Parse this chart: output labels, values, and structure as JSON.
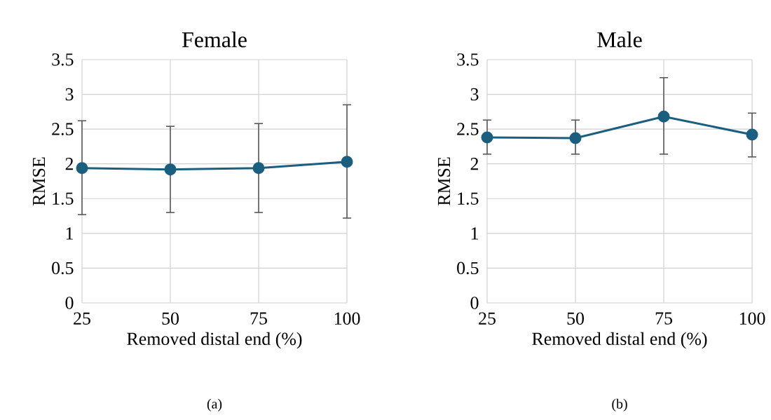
{
  "chart_data": [
    {
      "type": "line",
      "title": "Female",
      "xlabel": "Removed distal end (%)",
      "ylabel": "RMSE",
      "x": [
        25,
        50,
        75,
        100
      ],
      "values": [
        1.94,
        1.92,
        1.94,
        2.03
      ],
      "errors": [
        [
          1.27,
          2.62
        ],
        [
          1.3,
          2.54
        ],
        [
          1.3,
          2.58
        ],
        [
          1.22,
          2.85
        ]
      ],
      "color": "#1a5e80",
      "xlim": [
        25,
        100
      ],
      "xticks": [
        25,
        50,
        75,
        100
      ],
      "ylim": [
        0,
        3.5
      ],
      "yticks": [
        0,
        0.5,
        1,
        1.5,
        2,
        2.5,
        3,
        3.5
      ],
      "grid": true,
      "marker": "circle",
      "line_style": "solid",
      "annotations": [
        "(a)"
      ]
    },
    {
      "type": "line",
      "title": "Male",
      "xlabel": "Removed distal end (%)",
      "ylabel": "RMSE",
      "x": [
        25,
        50,
        75,
        100
      ],
      "values": [
        2.38,
        2.37,
        2.68,
        2.42
      ],
      "errors": [
        [
          2.14,
          2.63
        ],
        [
          2.14,
          2.63
        ],
        [
          2.14,
          3.24
        ],
        [
          2.1,
          2.73
        ]
      ],
      "color": "#1a5e80",
      "xlim": [
        25,
        100
      ],
      "xticks": [
        25,
        50,
        75,
        100
      ],
      "ylim": [
        0,
        3.5
      ],
      "yticks": [
        0,
        0.5,
        1,
        1.5,
        2,
        2.5,
        3,
        3.5
      ],
      "grid": true,
      "marker": "circle",
      "line_style": "solid",
      "annotations": [
        "(b)"
      ]
    }
  ]
}
